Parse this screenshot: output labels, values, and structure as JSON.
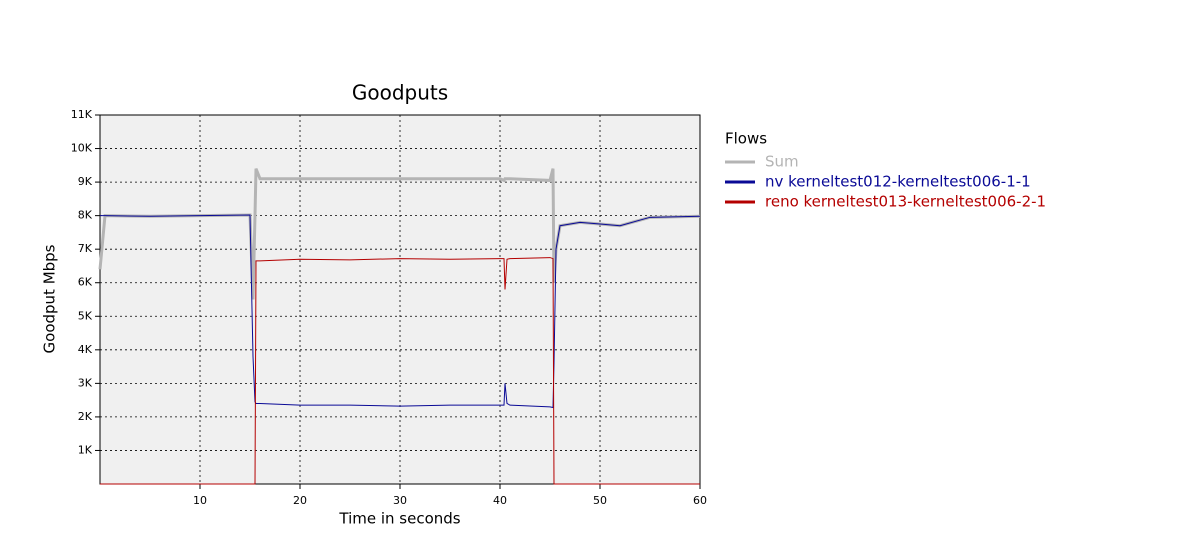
{
  "chart_data": {
    "type": "line",
    "title": "Goodputs",
    "x_label": "Time in seconds",
    "y_label": "Goodput Mbps",
    "legend_title": "Flows",
    "legend_position": "right",
    "grid": true,
    "xlim": [
      0,
      60
    ],
    "xticks": [
      10,
      20,
      30,
      40,
      50,
      60
    ],
    "ylim": [
      0,
      11000
    ],
    "yticks": [
      {
        "value": 1000,
        "label": "1K"
      },
      {
        "value": 2000,
        "label": "2K"
      },
      {
        "value": 3000,
        "label": "3K"
      },
      {
        "value": 4000,
        "label": "4K"
      },
      {
        "value": 5000,
        "label": "5K"
      },
      {
        "value": 6000,
        "label": "6K"
      },
      {
        "value": 7000,
        "label": "7K"
      },
      {
        "value": 8000,
        "label": "8K"
      },
      {
        "value": 9000,
        "label": "9K"
      },
      {
        "value": 10000,
        "label": "10K"
      },
      {
        "value": 11000,
        "label": "11K"
      }
    ],
    "x": [
      0,
      0.5,
      5,
      10,
      15,
      15.3,
      15.5,
      15.6,
      16,
      20,
      25,
      30,
      35,
      40,
      40.4,
      40.5,
      40.7,
      41,
      45,
      45.3,
      45.4,
      45.6,
      46,
      48,
      50,
      52,
      55,
      60
    ],
    "series": [
      {
        "name": "Sum",
        "color": "#b4b4b4",
        "width": 3,
        "values": [
          6400,
          8000,
          7980,
          8000,
          8020,
          5500,
          8000,
          9400,
          9100,
          9100,
          9100,
          9100,
          9100,
          9100,
          9050,
          9100,
          9100,
          9100,
          9050,
          9400,
          6000,
          7000,
          7700,
          7800,
          7750,
          7700,
          7950,
          7980
        ]
      },
      {
        "name": "nv kerneltest012-kerneltest006-1-1",
        "color": "#0a0a96",
        "width": 1,
        "values": [
          8000,
          8000,
          7980,
          8000,
          8020,
          3800,
          2450,
          2400,
          2400,
          2350,
          2350,
          2320,
          2350,
          2350,
          2350,
          3000,
          2400,
          2350,
          2300,
          2280,
          3600,
          7000,
          7700,
          7800,
          7750,
          7700,
          7950,
          7980
        ]
      },
      {
        "name": "reno kerneltest013-kerneltest006-2-1",
        "color": "#b40000",
        "width": 1,
        "values": [
          0,
          0,
          0,
          0,
          0,
          0,
          0,
          6650,
          6650,
          6700,
          6680,
          6720,
          6700,
          6720,
          6720,
          5800,
          6700,
          6720,
          6750,
          6720,
          0,
          0,
          0,
          0,
          0,
          0,
          0,
          0
        ]
      }
    ]
  }
}
